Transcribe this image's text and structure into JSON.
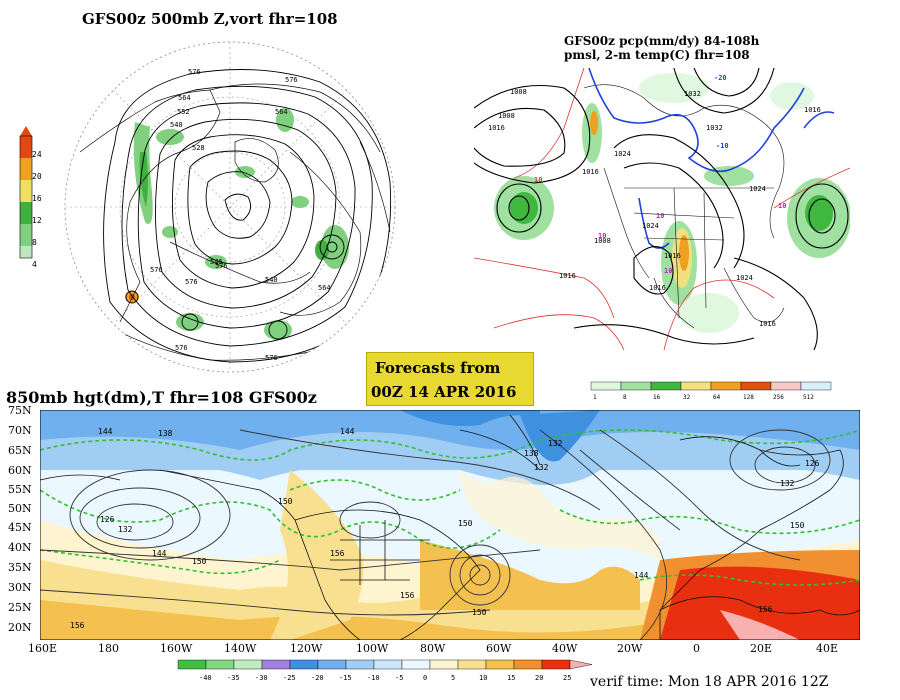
{
  "top_left": {
    "title": "GFS00z   500mb Z,vort    fhr=108",
    "colorbar_ticks": [
      "24",
      "20",
      "16",
      "12",
      "8",
      "4"
    ],
    "colors": [
      "#e04a10",
      "#f0a020",
      "#f0e060",
      "#40b040",
      "#80d080",
      "#c0e8c0"
    ],
    "contour_labels": [
      "576",
      "576",
      "564",
      "552",
      "540",
      "528",
      "564",
      "576",
      "540",
      "576",
      "576",
      "564",
      "576",
      "576",
      "546"
    ]
  },
  "top_right": {
    "title_line1": "GFS00z pcp(mm/dy) 84-108h",
    "title_line2": "pmsl, 2-m temp(C)   fhr=108",
    "pressure_labels": [
      "1008",
      "1016",
      "1008",
      "1032",
      "1032",
      "1016",
      "1024",
      "1016",
      "1024",
      "1016",
      "1024",
      "1016",
      "1024",
      "1016",
      "1016",
      "1008"
    ],
    "temp_labels": [
      "-20",
      "-10",
      "10",
      "10",
      "10",
      "10",
      "10"
    ],
    "colorbar_ticks": [
      "1",
      "8",
      "16",
      "32",
      "64",
      "128",
      "256",
      "512"
    ],
    "colorbar_colors": [
      "#e0f8e0",
      "#a0e0a0",
      "#40b840",
      "#f0e080",
      "#f0a020",
      "#e05010",
      "#f8c8c8",
      "#d8f0f8"
    ]
  },
  "forecast_box": {
    "line1": "Forecasts from",
    "line2": "00Z 14 APR 2016"
  },
  "bottom": {
    "title": "850mb hgt(dm),T   fhr=108 GFS00z",
    "lat_labels": [
      "75N",
      "70N",
      "65N",
      "60N",
      "55N",
      "50N",
      "45N",
      "40N",
      "35N",
      "30N",
      "25N",
      "20N"
    ],
    "lon_labels": [
      "160E",
      "180",
      "160W",
      "140W",
      "120W",
      "100W",
      "80W",
      "60W",
      "40W",
      "20W",
      "0",
      "20E",
      "40E"
    ],
    "height_labels": [
      "144",
      "138",
      "144",
      "132",
      "138",
      "132",
      "126",
      "132",
      "144",
      "150",
      "126",
      "132",
      "150",
      "156",
      "150",
      "156",
      "150",
      "144",
      "150",
      "156",
      "156"
    ],
    "colorbar_ticks": [
      "-40",
      "-35",
      "-30",
      "-25",
      "-20",
      "-15",
      "-10",
      "-5",
      "0",
      "5",
      "10",
      "15",
      "20",
      "25"
    ],
    "colorbar_colors": [
      "#40c040",
      "#80d880",
      "#c0ecc0",
      "#a080e0",
      "#4090e0",
      "#70b0ee",
      "#a0cdf4",
      "#cce6fa",
      "#ecf8ff",
      "#fff4d0",
      "#f8e090",
      "#f4c050",
      "#f09030",
      "#e83010",
      "#f8b0b0"
    ],
    "verif_time": "verif time: Mon 18 APR 2016 12Z"
  }
}
